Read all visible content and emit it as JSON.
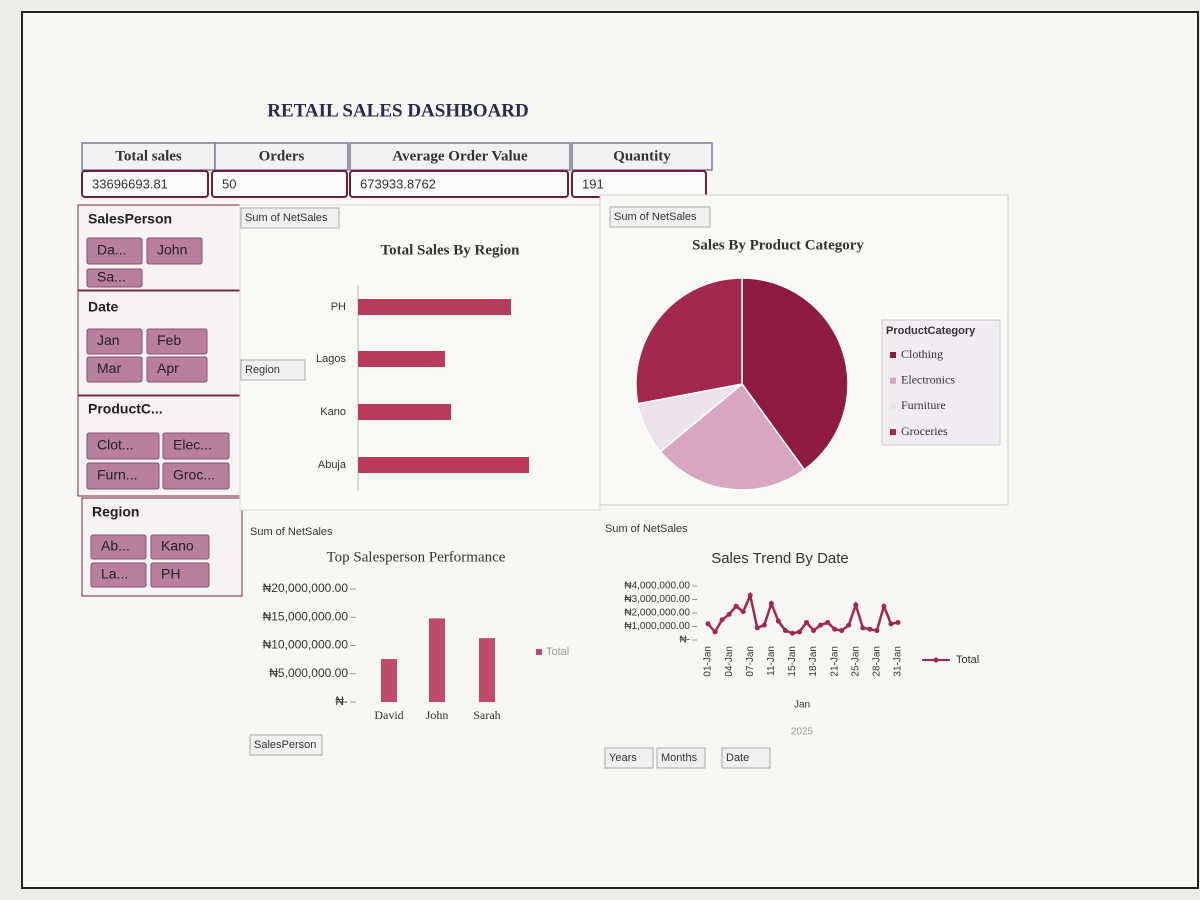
{
  "header": {
    "title": "RETAIL SALES DASHBOARD"
  },
  "kpis": [
    {
      "label": "Total sales",
      "value": "33696693.81"
    },
    {
      "label": "Orders",
      "value": "50"
    },
    {
      "label": "Average Order Value",
      "value": "673933.8762"
    },
    {
      "label": "Quantity",
      "value": "191"
    }
  ],
  "slicers": [
    {
      "title": "SalesPerson",
      "items": [
        "Da...",
        "John",
        "Sa..."
      ]
    },
    {
      "title": "Date",
      "items": [
        "Jan",
        "Feb",
        "Mar",
        "Apr"
      ]
    },
    {
      "title": "ProductC...",
      "items": [
        "Clot...",
        "Elec...",
        "Furn...",
        "Groc..."
      ]
    },
    {
      "title": "Region",
      "items": [
        "Ab...",
        "Kano",
        "La...",
        "PH"
      ]
    }
  ],
  "chart_data": [
    {
      "type": "hbar",
      "title": "Total Sales By Region",
      "value_field": "Sum of NetSales",
      "axis_field": "Region",
      "categories": [
        "PH",
        "Lagos",
        "Kano",
        "Abuja"
      ],
      "values": [
        10200000,
        5800000,
        6200000,
        11400000
      ],
      "color": "#b83a5c",
      "xlim": [
        0,
        12000000
      ]
    },
    {
      "type": "pie",
      "title": "Sales By Product Category",
      "value_field": "Sum of NetSales",
      "legend_title": "ProductCategory",
      "categories": [
        "Clothing",
        "Electronics",
        "Furniture",
        "Groceries"
      ],
      "values": [
        13480000,
        8090000,
        2700000,
        9430000
      ],
      "colors": [
        "#8e1c42",
        "#d8a6c0",
        "#ece2ea",
        "#a3284f"
      ]
    },
    {
      "type": "bar",
      "title": "Top Salesperson Performance",
      "value_field": "Sum of NetSales",
      "axis_field": "SalesPerson",
      "categories": [
        "David",
        "John",
        "Sarah"
      ],
      "series": [
        {
          "name": "Total",
          "color": "#c04a6a",
          "values": [
            7600000,
            14800000,
            11300000
          ]
        }
      ],
      "ylim": [
        0,
        20000000
      ],
      "yticks": [
        {
          "value": 0,
          "label": "₦-"
        },
        {
          "value": 5000000,
          "label": "₦5,000,000.00"
        },
        {
          "value": 10000000,
          "label": "₦10,000,000.00"
        },
        {
          "value": 15000000,
          "label": "₦15,000,000.00"
        },
        {
          "value": 20000000,
          "label": "₦20,000,000.00"
        }
      ]
    },
    {
      "type": "line",
      "title": "Sales Trend By Date",
      "value_field": "Sum of NetSales",
      "axis_fields": [
        "Years",
        "Months",
        "Date"
      ],
      "month_label": "Jan",
      "year_label": "2025",
      "categories": [
        "01-Jan",
        null,
        null,
        "04-Jan",
        null,
        null,
        "07-Jan",
        null,
        null,
        "11-Jan",
        null,
        null,
        "15-Jan",
        null,
        null,
        "18-Jan",
        null,
        null,
        "21-Jan",
        null,
        null,
        "25-Jan",
        null,
        null,
        "28-Jan",
        null,
        null,
        "31-Jan"
      ],
      "series": [
        {
          "name": "Total",
          "color": "#a3284f",
          "values": [
            1200000,
            600000,
            1500000,
            1900000,
            2500000,
            2100000,
            3300000,
            900000,
            1100000,
            2700000,
            1400000,
            700000,
            500000,
            600000,
            1300000,
            700000,
            1100000,
            1300000,
            800000,
            700000,
            1100000,
            2600000,
            900000,
            800000,
            700000,
            2500000,
            1200000,
            1300000
          ]
        }
      ],
      "ylim": [
        0,
        4000000
      ],
      "yticks": [
        {
          "value": 0,
          "label": "₦-"
        },
        {
          "value": 1000000,
          "label": "₦1,000,000.00"
        },
        {
          "value": 2000000,
          "label": "₦2,000,000.00"
        },
        {
          "value": 3000000,
          "label": "₦3,000,000.00"
        },
        {
          "value": 4000000,
          "label": "₦4,000,000.00"
        }
      ]
    }
  ]
}
